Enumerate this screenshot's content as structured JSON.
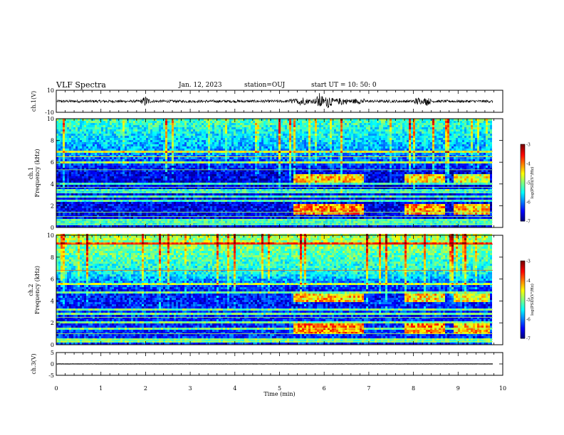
{
  "header": {
    "title": "VLF Spectra",
    "date": "Jan. 12, 2023",
    "station": "station=OUJ",
    "start": "start  UT =   10: 50: 0"
  },
  "chart_data": [
    {
      "type": "line",
      "panel": "ch1-waveform",
      "ylabel": "ch.1(V)",
      "ylim": [
        -10,
        10
      ],
      "yticks": [
        "10",
        "-10"
      ],
      "xlim": [
        0,
        10
      ],
      "baseline": 0,
      "noise_amplitude": 1.2,
      "bursts": [
        {
          "t": 2.0,
          "amp": 4
        },
        {
          "t": 5.5,
          "amp": 4
        },
        {
          "t": 5.9,
          "amp": 7
        },
        {
          "t": 6.1,
          "amp": 6
        },
        {
          "t": 6.4,
          "amp": 3
        },
        {
          "t": 8.1,
          "amp": 3
        },
        {
          "t": 8.3,
          "amp": 3
        }
      ]
    },
    {
      "type": "heatmap",
      "panel": "ch1-spectrogram",
      "ylabel": "ch.1\nFrequency (kHz)",
      "ylim": [
        0,
        10
      ],
      "yticks": [
        "0",
        "2",
        "4",
        "6",
        "8",
        "10"
      ],
      "xlim": [
        0,
        10
      ],
      "colorbar": {
        "label": "log(PSD)(V²/Hz)",
        "ticks": [
          "-3",
          "-4",
          "-5",
          "-6",
          "-7"
        ],
        "range": [
          -7,
          -3
        ]
      },
      "background_level": [
        {
          "f": 0,
          "v": -6.5
        },
        {
          "f": 5,
          "v": -6.6
        },
        {
          "f": 6.5,
          "v": -6.0
        },
        {
          "f": 10,
          "v": -5.2
        }
      ],
      "events": [
        {
          "t0": 5.3,
          "t1": 6.9,
          "f0": 4.1,
          "f1": 4.9,
          "v": -4.3
        },
        {
          "t0": 5.3,
          "t1": 6.9,
          "f0": 1.2,
          "f1": 2.2,
          "v": -4.0
        },
        {
          "t0": 7.8,
          "t1": 8.7,
          "f0": 4.1,
          "f1": 4.9,
          "v": -4.4
        },
        {
          "t0": 7.8,
          "t1": 8.7,
          "f0": 1.2,
          "f1": 2.2,
          "v": -4.1
        },
        {
          "t0": 8.9,
          "t1": 9.7,
          "f0": 4.1,
          "f1": 4.9,
          "v": -4.6
        },
        {
          "t0": 8.9,
          "t1": 9.7,
          "f0": 1.2,
          "f1": 2.2,
          "v": -4.3
        }
      ],
      "lines_khz": [
        0.3,
        0.5,
        0.7,
        1.0,
        1.4,
        2.5,
        2.8,
        3.2,
        3.4,
        3.7,
        4.0,
        5.3,
        6.0,
        6.5,
        7.0
      ]
    },
    {
      "type": "heatmap",
      "panel": "ch2-spectrogram",
      "ylabel": "ch.2\nFrequency (kHz)",
      "ylim": [
        0,
        10
      ],
      "yticks": [
        "0",
        "2",
        "4",
        "6",
        "8",
        "10"
      ],
      "xlim": [
        0,
        10
      ],
      "colorbar": {
        "label": "log(PSD)(V²/Hz)",
        "ticks": [
          "-3",
          "-4",
          "-5",
          "-6",
          "-7"
        ],
        "range": [
          -7,
          -3
        ]
      },
      "background_level": [
        {
          "f": 0,
          "v": -6.3
        },
        {
          "f": 5,
          "v": -6.4
        },
        {
          "f": 6.5,
          "v": -5.5
        },
        {
          "f": 10,
          "v": -4.8
        }
      ],
      "events": [
        {
          "t0": 5.3,
          "t1": 6.9,
          "f0": 3.9,
          "f1": 4.6,
          "v": -4.3
        },
        {
          "t0": 5.3,
          "t1": 6.9,
          "f0": 1.0,
          "f1": 2.0,
          "v": -4.0
        },
        {
          "t0": 7.8,
          "t1": 8.7,
          "f0": 3.9,
          "f1": 4.6,
          "v": -4.4
        },
        {
          "t0": 7.8,
          "t1": 8.7,
          "f0": 1.0,
          "f1": 2.0,
          "v": -4.1
        },
        {
          "t0": 8.9,
          "t1": 9.7,
          "f0": 3.9,
          "f1": 4.6,
          "v": -4.6
        },
        {
          "t0": 8.9,
          "t1": 9.7,
          "f0": 1.0,
          "f1": 2.0,
          "v": -4.3
        }
      ],
      "lines_khz": [
        0.3,
        0.5,
        1.0,
        1.5,
        2.0,
        2.5,
        2.8,
        3.2,
        4.8,
        5.5,
        6.8,
        9.2
      ]
    },
    {
      "type": "line",
      "panel": "ch3-waveform",
      "ylabel": "ch.3(V)",
      "ylim": [
        -5,
        5
      ],
      "yticks": [
        "5",
        "0",
        "-5"
      ],
      "xlim": [
        0,
        10
      ],
      "baseline": 0,
      "noise_amplitude": 0.05,
      "xlabel": "Time  (min)",
      "xticks": [
        "0",
        "1",
        "2",
        "3",
        "4",
        "5",
        "6",
        "7",
        "8",
        "9",
        "10"
      ]
    }
  ]
}
